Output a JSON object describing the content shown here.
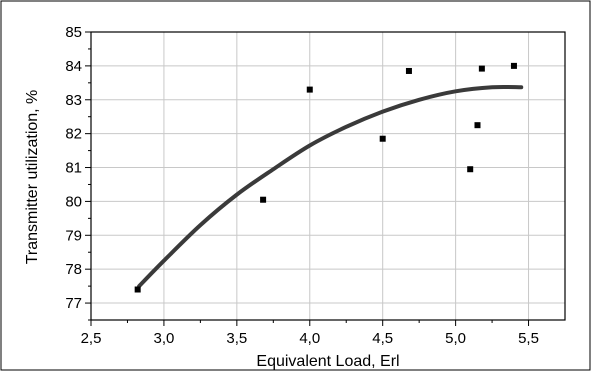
{
  "chart_data": {
    "type": "scatter",
    "xlabel": "Equivalent Load, Erl",
    "ylabel": "Transmitter utilization, %",
    "xlim": [
      2.5,
      5.75
    ],
    "ylim": [
      76.5,
      85
    ],
    "x_ticks": [
      "2,5",
      "3,0",
      "3,5",
      "4,0",
      "4,5",
      "5,0",
      "5,5"
    ],
    "x_tick_values": [
      2.5,
      3.0,
      3.5,
      4.0,
      4.5,
      5.0,
      5.5
    ],
    "y_ticks": [
      "77",
      "78",
      "79",
      "80",
      "81",
      "82",
      "83",
      "84",
      "85"
    ],
    "y_tick_values": [
      77,
      78,
      79,
      80,
      81,
      82,
      83,
      84,
      85
    ],
    "grid": true,
    "series": [
      {
        "type": "scatter",
        "marker": "square",
        "color": "#000000",
        "points": [
          {
            "x": 2.82,
            "y": 77.4
          },
          {
            "x": 3.68,
            "y": 80.05
          },
          {
            "x": 4.0,
            "y": 83.3
          },
          {
            "x": 4.5,
            "y": 81.85
          },
          {
            "x": 4.68,
            "y": 83.85
          },
          {
            "x": 5.1,
            "y": 80.95
          },
          {
            "x": 5.15,
            "y": 82.25
          },
          {
            "x": 5.18,
            "y": 83.92
          },
          {
            "x": 5.4,
            "y": 84.0
          }
        ]
      },
      {
        "type": "line",
        "style": "fitted-curve",
        "color": "#3a3a3a",
        "points": [
          {
            "x": 2.83,
            "y": 77.5
          },
          {
            "x": 3.0,
            "y": 78.25
          },
          {
            "x": 3.25,
            "y": 79.3
          },
          {
            "x": 3.5,
            "y": 80.2
          },
          {
            "x": 3.75,
            "y": 80.95
          },
          {
            "x": 4.0,
            "y": 81.65
          },
          {
            "x": 4.25,
            "y": 82.2
          },
          {
            "x": 4.5,
            "y": 82.65
          },
          {
            "x": 4.75,
            "y": 83.0
          },
          {
            "x": 5.0,
            "y": 83.25
          },
          {
            "x": 5.25,
            "y": 83.37
          },
          {
            "x": 5.45,
            "y": 83.37
          }
        ]
      }
    ]
  }
}
